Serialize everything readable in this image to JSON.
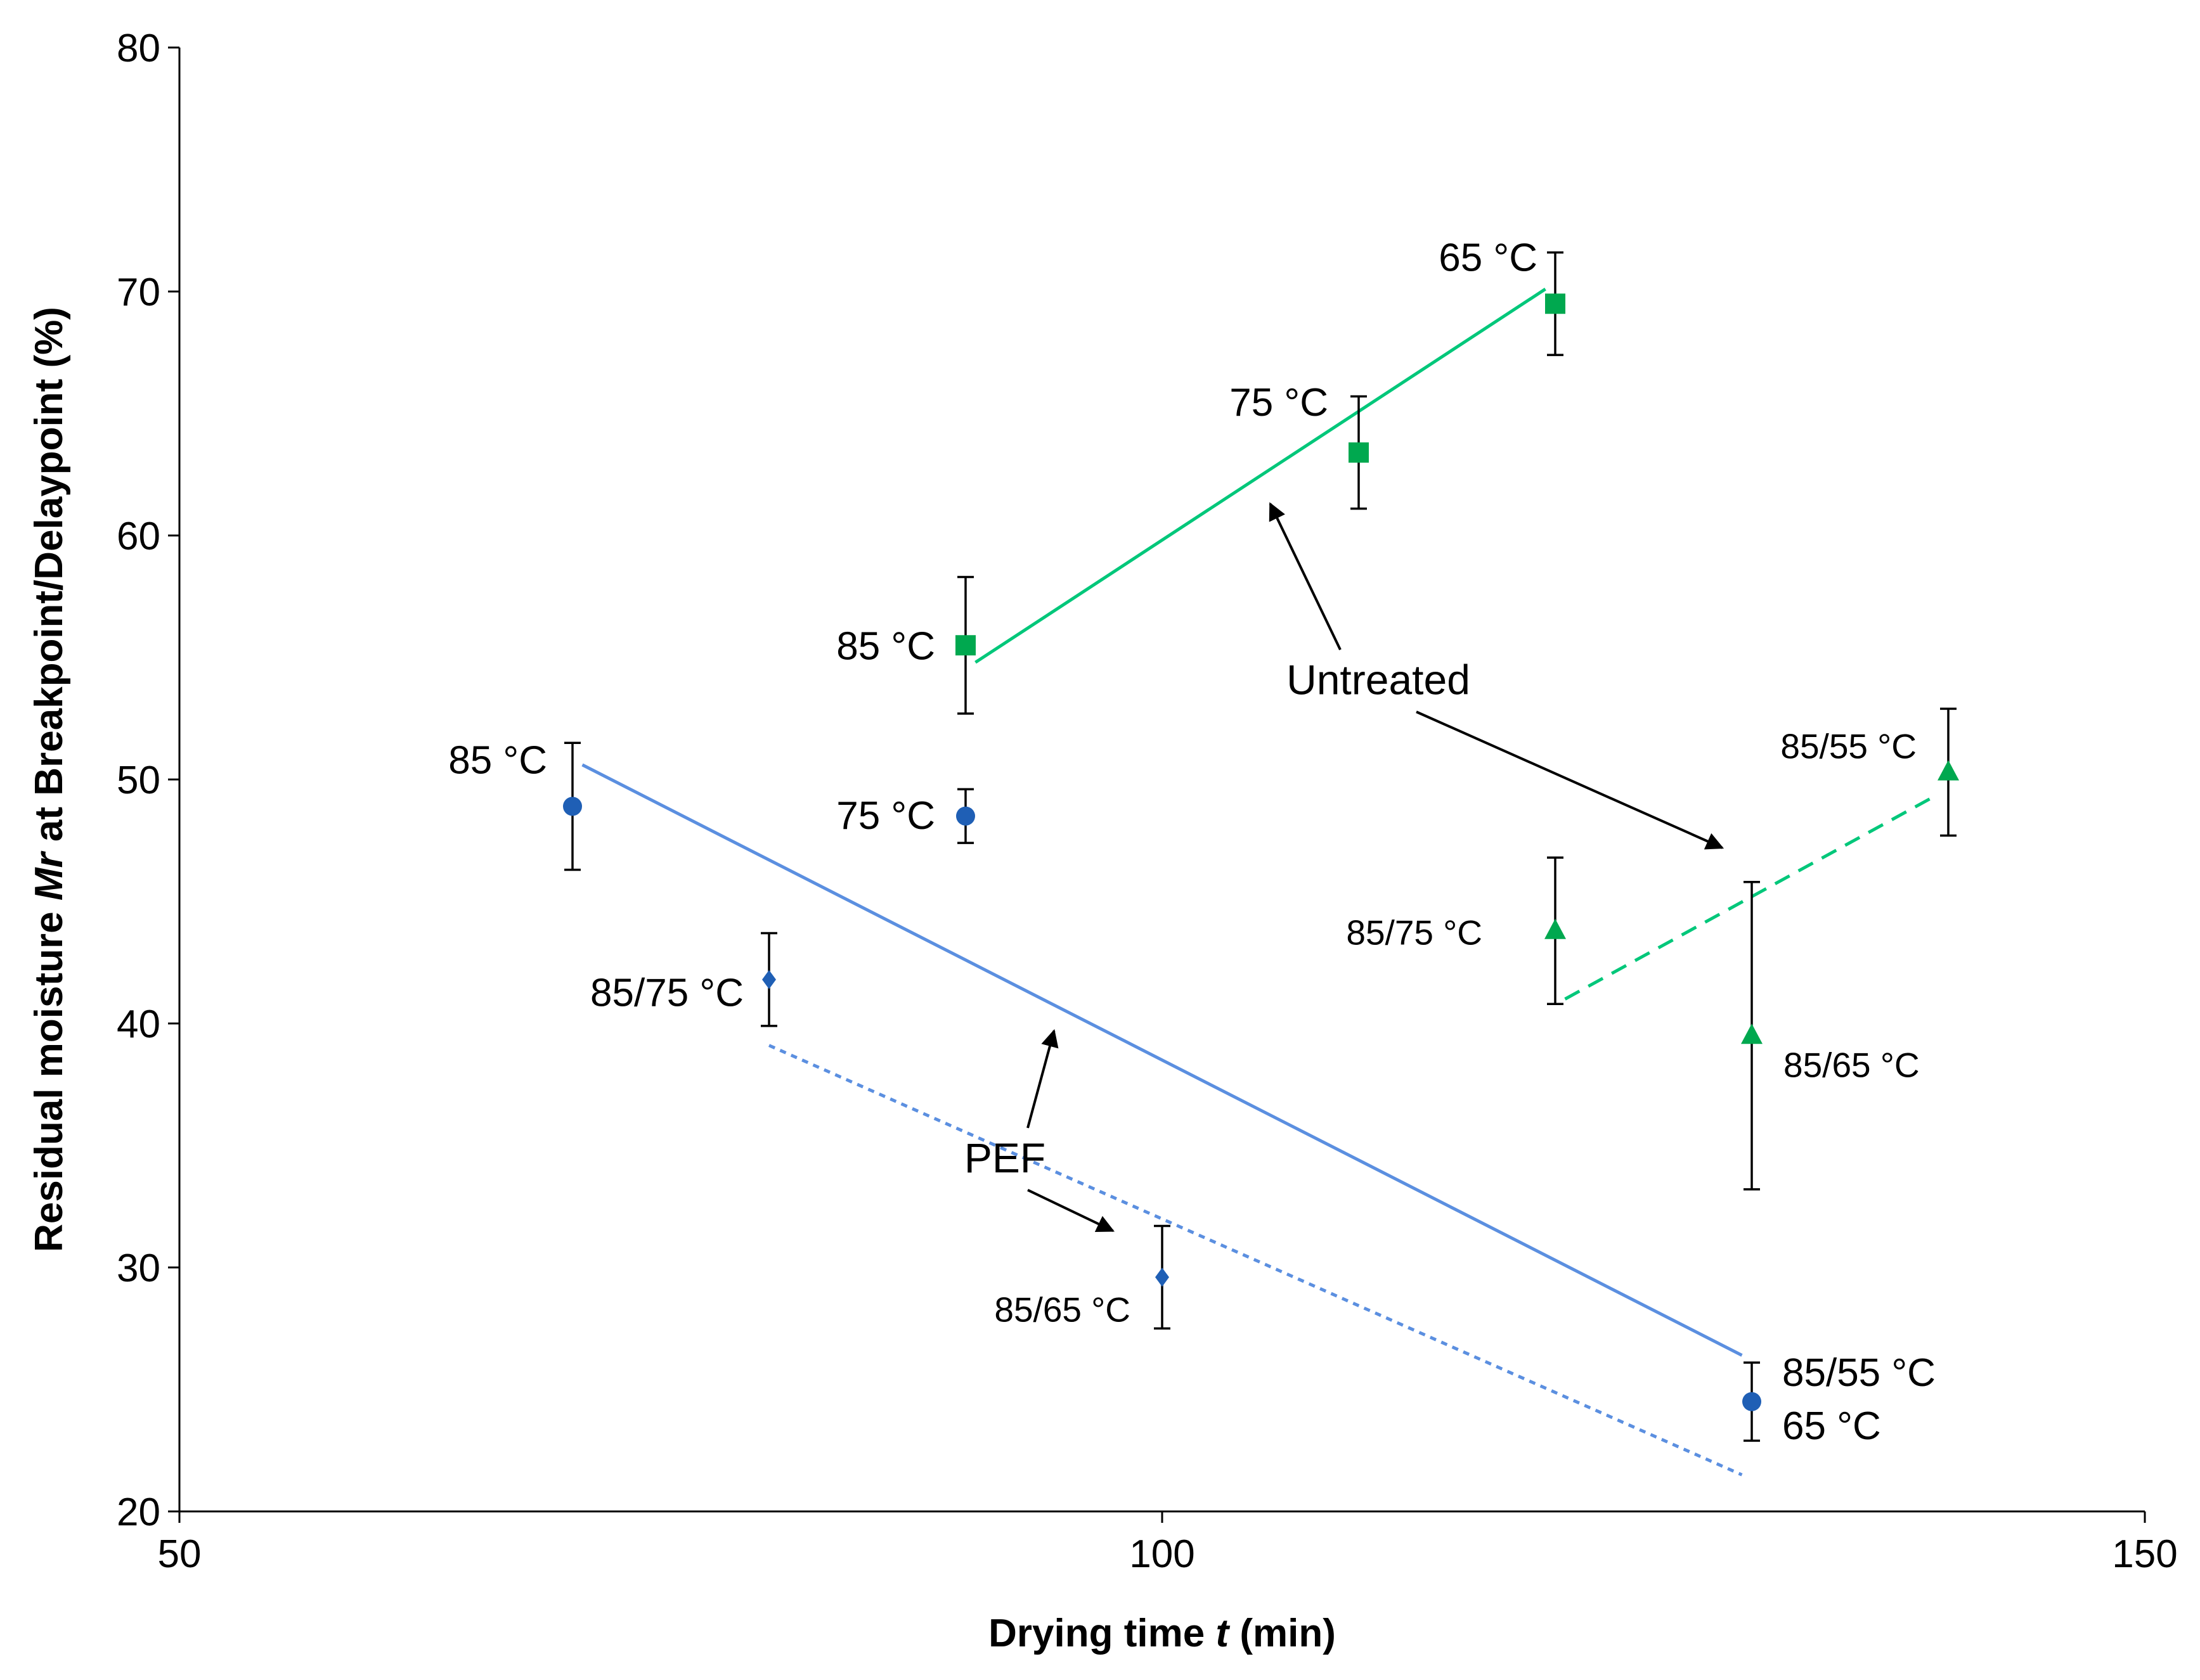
{
  "chart_data": {
    "type": "scatter",
    "title": "",
    "xlabel": {
      "prefix": "Drying time ",
      "italic": "t",
      "suffix": " (min)"
    },
    "ylabel": {
      "prefix": "Residual moisture ",
      "italic": "Mr",
      "suffix": " at Breakpoint/Delaypoint (%)"
    },
    "xlim": [
      50,
      150
    ],
    "ylim": [
      20,
      80
    ],
    "xticks": [
      50,
      100,
      150
    ],
    "yticks": [
      20,
      30,
      40,
      50,
      60,
      70,
      80
    ],
    "grid": false,
    "colors": {
      "untreated": "#00a84f",
      "untreated_line": "#00c77a",
      "pef": "#1f5fb5",
      "pef_line": "#5b8fe0"
    },
    "series": [
      {
        "group": "untreated",
        "marker": "square",
        "points": [
          {
            "x": 90,
            "y": 55.5,
            "err": 2.8,
            "label": "85 °C"
          },
          {
            "x": 110,
            "y": 63.4,
            "err": 2.3,
            "label": "75 °C"
          },
          {
            "x": 120,
            "y": 69.5,
            "err": 2.1,
            "label": "65 °C"
          }
        ]
      },
      {
        "group": "untreated",
        "marker": "triangle",
        "points": [
          {
            "x": 120,
            "y": 43.8,
            "err": 3.0,
            "label": "85/75 °C"
          },
          {
            "x": 130,
            "y": 39.5,
            "err": 6.3,
            "label": "85/65 °C"
          },
          {
            "x": 140,
            "y": 50.3,
            "err": 2.6,
            "label": "85/55 °C"
          }
        ]
      },
      {
        "group": "pef",
        "marker": "circle",
        "points": [
          {
            "x": 70,
            "y": 48.9,
            "err": 2.6,
            "label": "85 °C"
          },
          {
            "x": 90,
            "y": 48.5,
            "err": 1.1,
            "label": "75 °C"
          },
          {
            "x": 130,
            "y": 24.5,
            "err": 1.6,
            "label": "85/55 °C\n65 °C"
          }
        ]
      },
      {
        "group": "pef",
        "marker": "diamond",
        "points": [
          {
            "x": 80,
            "y": 41.8,
            "err": 1.9,
            "label": "85/75 °C"
          },
          {
            "x": 100,
            "y": 29.6,
            "err": 2.1,
            "label": "85/65 °C"
          }
        ]
      }
    ],
    "trendlines": [
      {
        "group": "untreated",
        "style": "solid",
        "from": [
          90.5,
          54.8
        ],
        "to": [
          119.5,
          70.1
        ]
      },
      {
        "group": "untreated",
        "style": "dashed",
        "from": [
          120.5,
          41.0
        ],
        "to": [
          139.5,
          49.4
        ]
      },
      {
        "group": "pef",
        "style": "solid",
        "from": [
          70.5,
          50.6
        ],
        "to": [
          129.5,
          26.4
        ]
      },
      {
        "group": "pef",
        "style": "dotted",
        "from": [
          80.0,
          39.1
        ],
        "to": [
          129.5,
          21.5
        ]
      }
    ],
    "annotations": [
      {
        "text": "Untreated",
        "x": 111,
        "y": 53.5,
        "arrows_to": [
          [
            105.5,
            61.3
          ],
          [
            128.5,
            47.2
          ]
        ]
      },
      {
        "text": "PEF",
        "x": 92,
        "y": 33.9,
        "arrows_to": [
          [
            94.5,
            39.7
          ],
          [
            97.5,
            31.5
          ]
        ]
      }
    ]
  }
}
